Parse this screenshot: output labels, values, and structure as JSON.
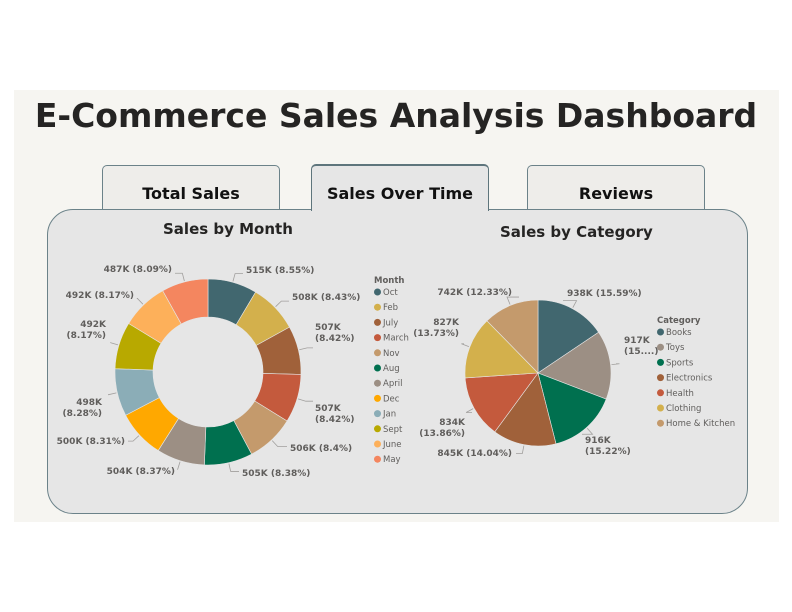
{
  "header": {
    "title": "E-Commerce Sales Analysis Dashboard"
  },
  "tabs": [
    {
      "label": "Total Sales",
      "active": false
    },
    {
      "label": "Sales Over Time",
      "active": true
    },
    {
      "label": "Reviews",
      "active": false
    }
  ],
  "charts": {
    "month": {
      "title": "Sales by Month",
      "legend_title": "Month",
      "legend": [
        "Oct",
        "Feb",
        "July",
        "March",
        "Nov",
        "Aug",
        "April",
        "Dec",
        "Jan",
        "Sept",
        "June",
        "May"
      ]
    },
    "category": {
      "title": "Sales by Category",
      "legend_title": "Category",
      "legend": [
        "Books",
        "Toys",
        "Sports",
        "Electronics",
        "Health",
        "Clothing",
        "Home & Kitchen"
      ]
    }
  },
  "chart_data": [
    {
      "type": "pie",
      "variant": "donut",
      "title": "Sales by Month",
      "legend_title": "Month",
      "legend_position": "right",
      "categories": [
        "Oct",
        "Feb",
        "July",
        "March",
        "Nov",
        "Aug",
        "April",
        "Dec",
        "Jan",
        "Sept",
        "June",
        "May"
      ],
      "values": [
        515000,
        508000,
        507000,
        507000,
        506000,
        505000,
        504000,
        500000,
        498000,
        492000,
        492000,
        487000
      ],
      "percentages": [
        8.55,
        8.43,
        8.42,
        8.42,
        8.4,
        8.38,
        8.37,
        8.31,
        8.28,
        8.17,
        8.17,
        8.09
      ],
      "data_labels": [
        "515K (8.55%)",
        "508K (8.43%)",
        "507K (8.42%)",
        "507K (8.42%)",
        "506K (8.4%)",
        "505K (8.38%)",
        "504K (8.37%)",
        "500K (8.31%)",
        "498K (8.28%)",
        "492K (8.17%)",
        "492K (8.17%)",
        "487K (8.09%)"
      ],
      "colors": [
        "#41676f",
        "#d3b04c",
        "#a0613a",
        "#c45a3d",
        "#c49a6c",
        "#00704f",
        "#9c8f84",
        "#ffa800",
        "#8badb7",
        "#b8a900",
        "#fdb05a",
        "#f4865f"
      ]
    },
    {
      "type": "pie",
      "title": "Sales by Category",
      "legend_title": "Category",
      "legend_position": "right",
      "categories": [
        "Books",
        "Toys",
        "Sports",
        "Electronics",
        "Health",
        "Clothing",
        "Home & Kitchen"
      ],
      "values": [
        938000,
        917000,
        916000,
        845000,
        834000,
        827000,
        742000
      ],
      "percentages": [
        15.59,
        15.24,
        15.22,
        14.04,
        13.86,
        13.73,
        12.33
      ],
      "data_labels": [
        "938K (15.59%)",
        "917K (15....)",
        "916K (15.22%)",
        "845K (14.04%)",
        "834K (13.86%)",
        "827K (13.73%)",
        "742K (12.33%)"
      ],
      "colors": [
        "#41676f",
        "#9c8f84",
        "#00704f",
        "#a0613a",
        "#c45a3d",
        "#d3b04c",
        "#c49a6c"
      ]
    }
  ]
}
